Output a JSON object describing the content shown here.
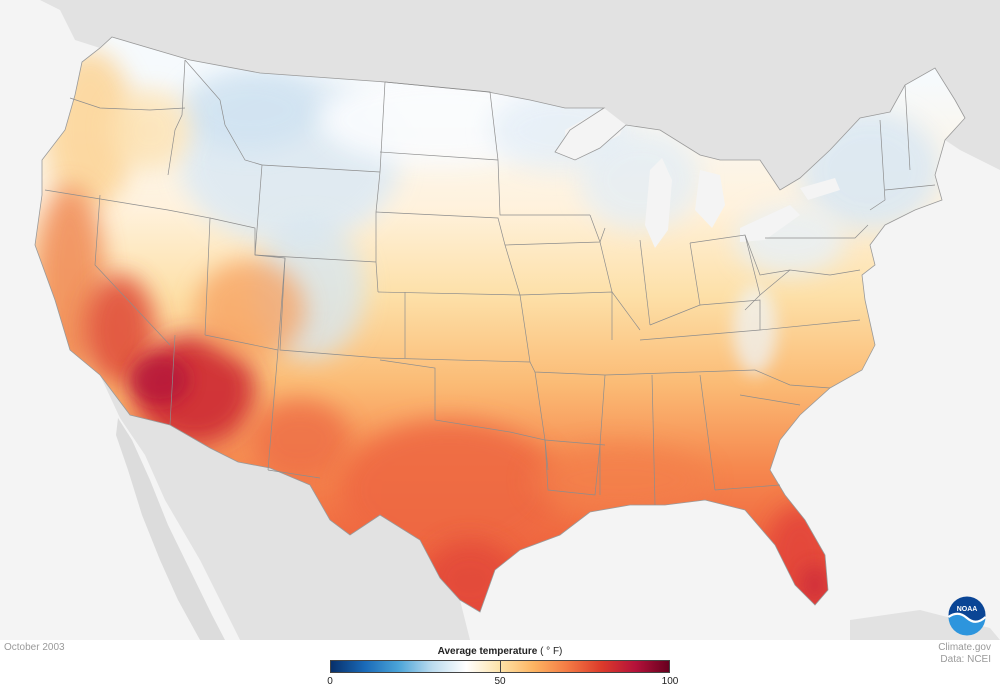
{
  "map": {
    "title": "Average temperature",
    "unit": "( ° F)",
    "date": "October 2003",
    "credit": [
      "Climate.gov",
      "Data: NCEI"
    ],
    "logo_text": "NOAA"
  },
  "legend": {
    "min": 0,
    "max": 100,
    "ticks": [
      "0",
      "50",
      "100"
    ],
    "tick_values": [
      0,
      50,
      100
    ],
    "colors": [
      "#08306b",
      "#1a6ab8",
      "#4ba4d8",
      "#bcdcef",
      "#ffffff",
      "#fde3a8",
      "#fdb462",
      "#f47a44",
      "#dc3b2b",
      "#b5123a",
      "#67001f"
    ]
  },
  "colors": {
    "background": "#f4f4f4",
    "land_neighbor": "#e2e2e2",
    "great_lakes": "#f4f4f4",
    "state_border": "#8d8d8d",
    "noaa_blue": "#0a4595",
    "noaa_light": "#2d95dd"
  },
  "temperature_zones": [
    {
      "region": "Northern Rockies",
      "approx_f": 42
    },
    {
      "region": "Northern Plains",
      "approx_f": 50
    },
    {
      "region": "Great Lakes / Northeast",
      "approx_f": 46
    },
    {
      "region": "Central Plains",
      "approx_f": 57
    },
    {
      "region": "Southeast",
      "approx_f": 66
    },
    {
      "region": "Texas",
      "approx_f": 72
    },
    {
      "region": "Florida",
      "approx_f": 78
    },
    {
      "region": "California Central Valley",
      "approx_f": 78
    },
    {
      "region": "Desert Southwest",
      "approx_f": 85
    }
  ]
}
